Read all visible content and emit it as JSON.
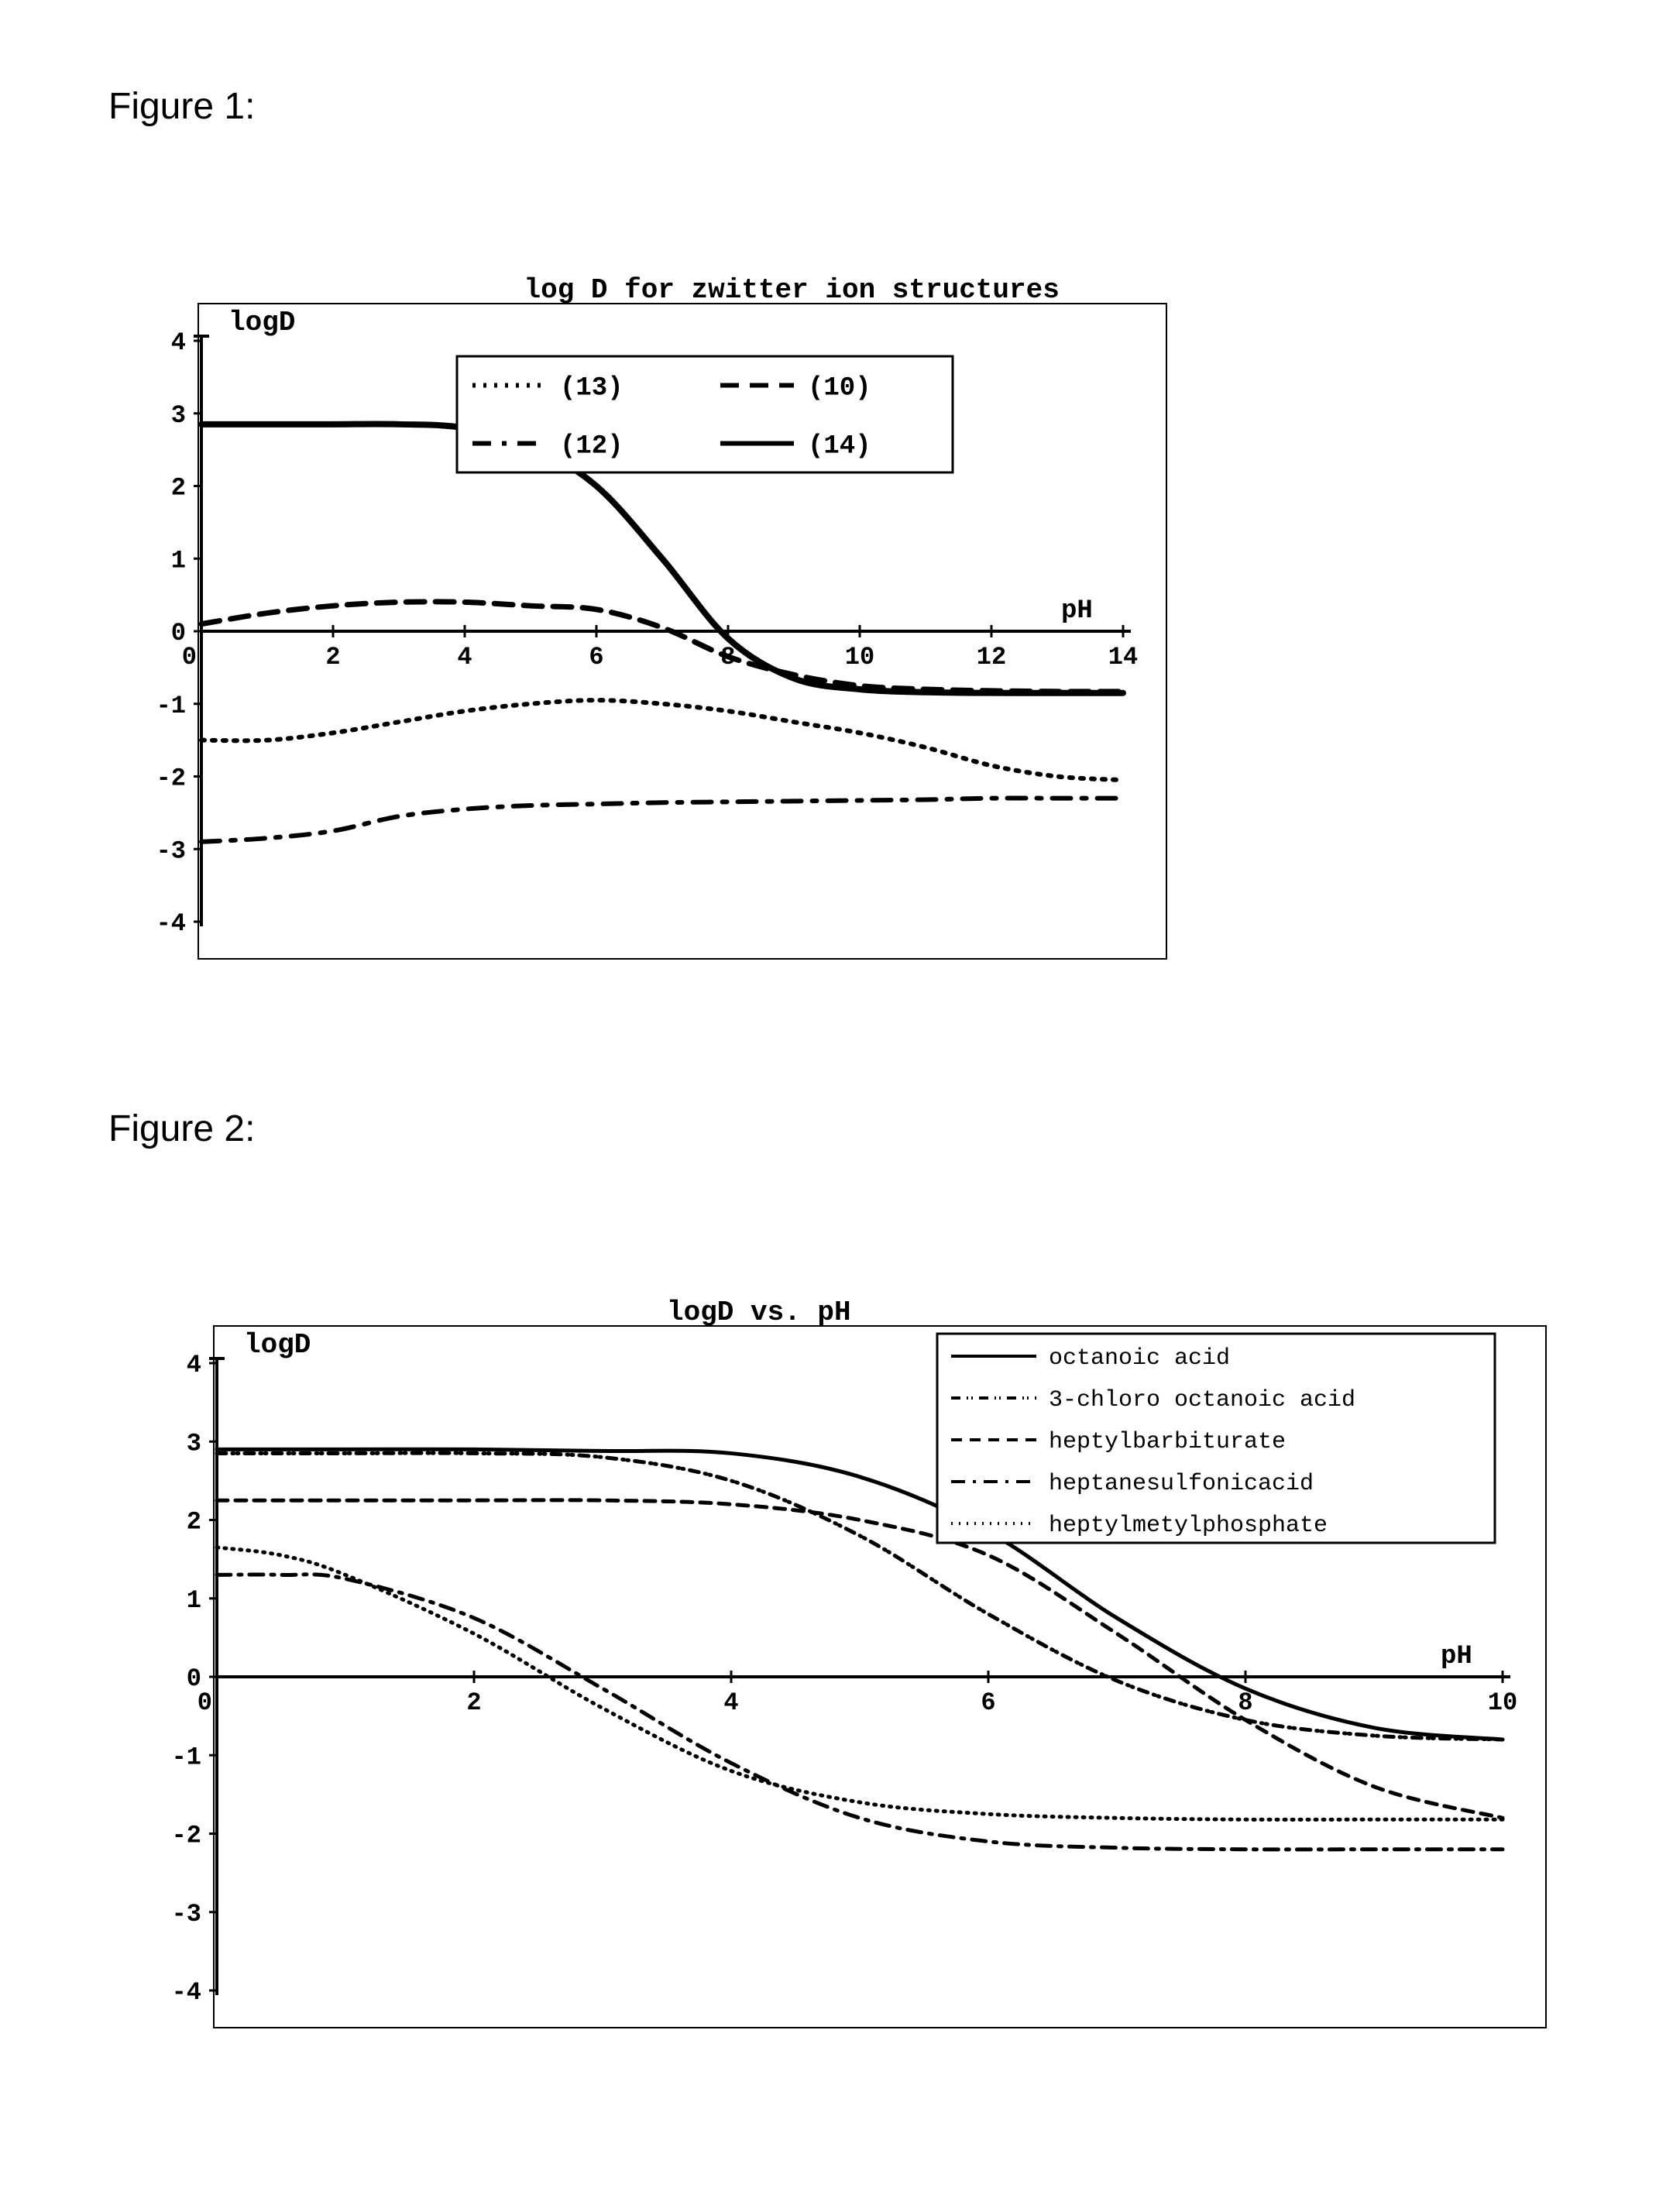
{
  "figure1_label": "Figure 1:",
  "figure2_label": "Figure 2:",
  "chart1": {
    "type": "line",
    "title": "log D for zwitter ion structures",
    "xlabel": "pH",
    "ylabel": "logD",
    "xlim": [
      0,
      14
    ],
    "ylim": [
      -4,
      4
    ],
    "xtick_step": 2,
    "ytick_step": 1,
    "title_fontsize": 36,
    "axis_label_fontsize": 36,
    "tick_fontsize": 32,
    "background_color": "#ffffff",
    "axis_color": "#000000",
    "line_color": "#000000",
    "line_width": 6,
    "legend": {
      "items": [
        {
          "label": "(13)",
          "dash": "4,10"
        },
        {
          "label": "(10)",
          "dash": "24,14"
        },
        {
          "label": "(12)",
          "dash": "24,14,6,14"
        },
        {
          "label": "(14)",
          "dash": "none"
        }
      ],
      "border_color": "#000000",
      "border_width": 3,
      "fontsize": 34
    },
    "series": {
      "s13": {
        "label": "(13)",
        "dash": "4,10",
        "width": 6,
        "points": [
          [
            0,
            -1.5
          ],
          [
            1,
            -1.5
          ],
          [
            2,
            -1.4
          ],
          [
            3,
            -1.25
          ],
          [
            4,
            -1.1
          ],
          [
            5,
            -1.0
          ],
          [
            6,
            -0.95
          ],
          [
            7,
            -1.0
          ],
          [
            8,
            -1.1
          ],
          [
            9,
            -1.25
          ],
          [
            10,
            -1.4
          ],
          [
            11,
            -1.6
          ],
          [
            12,
            -1.85
          ],
          [
            13,
            -2.0
          ],
          [
            14,
            -2.05
          ]
        ]
      },
      "s10": {
        "label": "(10)",
        "dash": "24,14",
        "width": 7,
        "points": [
          [
            0,
            0.1
          ],
          [
            1,
            0.25
          ],
          [
            2,
            0.35
          ],
          [
            3,
            0.4
          ],
          [
            4,
            0.4
          ],
          [
            5,
            0.35
          ],
          [
            6,
            0.3
          ],
          [
            7,
            0.05
          ],
          [
            8,
            -0.35
          ],
          [
            9,
            -0.6
          ],
          [
            10,
            -0.75
          ],
          [
            11,
            -0.8
          ],
          [
            12,
            -0.82
          ],
          [
            13,
            -0.83
          ],
          [
            14,
            -0.83
          ]
        ]
      },
      "s12": {
        "label": "(12)",
        "dash": "24,14,6,14",
        "width": 6,
        "points": [
          [
            0,
            -2.9
          ],
          [
            1,
            -2.85
          ],
          [
            2,
            -2.75
          ],
          [
            3,
            -2.55
          ],
          [
            4,
            -2.45
          ],
          [
            5,
            -2.4
          ],
          [
            6,
            -2.38
          ],
          [
            7,
            -2.36
          ],
          [
            8,
            -2.35
          ],
          [
            9,
            -2.34
          ],
          [
            10,
            -2.33
          ],
          [
            11,
            -2.32
          ],
          [
            12,
            -2.3
          ],
          [
            13,
            -2.3
          ],
          [
            14,
            -2.3
          ]
        ]
      },
      "s14": {
        "label": "(14)",
        "dash": "none",
        "width": 8,
        "points": [
          [
            0,
            2.85
          ],
          [
            1,
            2.85
          ],
          [
            2,
            2.85
          ],
          [
            3,
            2.85
          ],
          [
            4,
            2.8
          ],
          [
            5,
            2.55
          ],
          [
            6,
            2.0
          ],
          [
            7,
            1.0
          ],
          [
            8,
            -0.1
          ],
          [
            9,
            -0.65
          ],
          [
            10,
            -0.8
          ],
          [
            11,
            -0.84
          ],
          [
            12,
            -0.85
          ],
          [
            13,
            -0.85
          ],
          [
            14,
            -0.85
          ]
        ]
      }
    }
  },
  "chart2": {
    "type": "line",
    "title": "logD vs. pH",
    "xlabel": "pH",
    "ylabel": "logD",
    "xlim": [
      0,
      10
    ],
    "ylim": [
      -4,
      4
    ],
    "xtick_step": 2,
    "ytick_step": 1,
    "title_fontsize": 36,
    "axis_label_fontsize": 36,
    "tick_fontsize": 32,
    "background_color": "#ffffff",
    "axis_color": "#000000",
    "line_color": "#000000",
    "line_width": 5,
    "legend": {
      "items": [
        {
          "label": "octanoic acid",
          "dash": "none"
        },
        {
          "label": "3-chloro octanoic acid",
          "dash": "12,8,2,4,2,8"
        },
        {
          "label": "heptylbarbiturate",
          "dash": "14,10"
        },
        {
          "label": "heptanesulfonicacid",
          "dash": "18,10,4,10"
        },
        {
          "label": "heptylmetylphosphate",
          "dash": "2,8"
        }
      ],
      "border_color": "#000000",
      "border_width": 3,
      "fontsize": 30
    },
    "series": {
      "octanoic": {
        "label": "octanoic acid",
        "dash": "none",
        "width": 5,
        "points": [
          [
            0,
            2.9
          ],
          [
            1,
            2.9
          ],
          [
            2,
            2.9
          ],
          [
            3,
            2.88
          ],
          [
            4,
            2.85
          ],
          [
            5,
            2.55
          ],
          [
            6,
            1.85
          ],
          [
            7,
            0.75
          ],
          [
            8,
            -0.15
          ],
          [
            9,
            -0.65
          ],
          [
            10,
            -0.8
          ]
        ]
      },
      "chloro": {
        "label": "3-chloro octanoic acid",
        "dash": "12,8,2,4,2,8",
        "width": 5,
        "points": [
          [
            0,
            2.85
          ],
          [
            1,
            2.85
          ],
          [
            2,
            2.85
          ],
          [
            3,
            2.8
          ],
          [
            4,
            2.5
          ],
          [
            5,
            1.8
          ],
          [
            6,
            0.8
          ],
          [
            7,
            -0.05
          ],
          [
            8,
            -0.55
          ],
          [
            9,
            -0.75
          ],
          [
            10,
            -0.8
          ]
        ]
      },
      "barb": {
        "label": "heptylbarbiturate",
        "dash": "14,10",
        "width": 5,
        "points": [
          [
            0,
            2.25
          ],
          [
            1,
            2.25
          ],
          [
            2,
            2.25
          ],
          [
            3,
            2.25
          ],
          [
            4,
            2.2
          ],
          [
            5,
            2.0
          ],
          [
            6,
            1.55
          ],
          [
            7,
            0.55
          ],
          [
            8,
            -0.55
          ],
          [
            9,
            -1.4
          ],
          [
            10,
            -1.8
          ]
        ]
      },
      "sulf": {
        "label": "heptanesulfonicacid",
        "dash": "18,10,4,10",
        "width": 5,
        "points": [
          [
            0,
            1.3
          ],
          [
            0.5,
            1.3
          ],
          [
            1,
            1.25
          ],
          [
            2,
            0.75
          ],
          [
            3,
            -0.15
          ],
          [
            4,
            -1.1
          ],
          [
            5,
            -1.8
          ],
          [
            6,
            -2.1
          ],
          [
            7,
            -2.18
          ],
          [
            8,
            -2.2
          ],
          [
            9,
            -2.2
          ],
          [
            10,
            -2.2
          ]
        ]
      },
      "phos": {
        "label": "heptylmetylphosphate",
        "dash": "2,8",
        "width": 5,
        "points": [
          [
            0,
            1.65
          ],
          [
            0.5,
            1.55
          ],
          [
            1,
            1.3
          ],
          [
            2,
            0.55
          ],
          [
            3,
            -0.4
          ],
          [
            4,
            -1.2
          ],
          [
            5,
            -1.6
          ],
          [
            6,
            -1.75
          ],
          [
            7,
            -1.8
          ],
          [
            8,
            -1.82
          ],
          [
            9,
            -1.82
          ],
          [
            10,
            -1.82
          ]
        ]
      }
    }
  }
}
